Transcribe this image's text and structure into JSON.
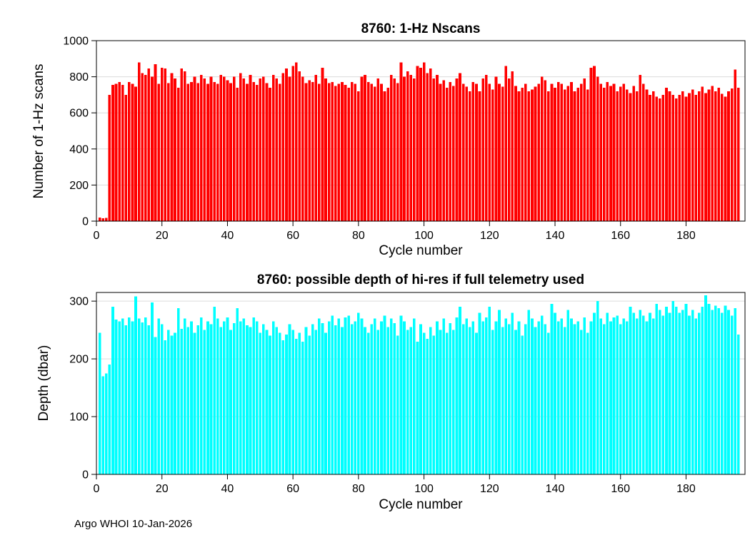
{
  "figure": {
    "footer": "Argo WHOI 10-Jan-2026",
    "background": "#ffffff"
  },
  "chart_data": [
    {
      "type": "bar",
      "title": "8760: 1-Hz Nscans",
      "xlabel": "Cycle number",
      "ylabel": "Number of 1-Hz scans",
      "bar_color": "#ff0000",
      "ylim": [
        0,
        1000
      ],
      "yticks": [
        0,
        200,
        400,
        600,
        800,
        1000
      ],
      "xticks": [
        0,
        20,
        40,
        60,
        80,
        100,
        120,
        140,
        160,
        180
      ],
      "xlim": [
        0,
        198
      ],
      "x_start": 1,
      "grid": "horizontal-only",
      "legend": "none",
      "values": [
        20,
        15,
        18,
        700,
        755,
        760,
        770,
        755,
        700,
        770,
        760,
        745,
        880,
        820,
        810,
        845,
        800,
        870,
        760,
        850,
        845,
        765,
        820,
        790,
        740,
        845,
        830,
        760,
        770,
        800,
        765,
        810,
        790,
        760,
        800,
        770,
        760,
        810,
        800,
        780,
        765,
        800,
        740,
        820,
        790,
        760,
        810,
        770,
        755,
        790,
        800,
        765,
        740,
        810,
        790,
        760,
        820,
        845,
        800,
        860,
        880,
        830,
        800,
        765,
        780,
        770,
        810,
        760,
        850,
        790,
        765,
        770,
        750,
        760,
        770,
        755,
        740,
        770,
        760,
        720,
        800,
        810,
        770,
        760,
        745,
        790,
        760,
        720,
        740,
        810,
        790,
        765,
        880,
        800,
        830,
        810,
        790,
        860,
        850,
        880,
        820,
        845,
        790,
        810,
        760,
        780,
        740,
        770,
        750,
        790,
        820,
        760,
        745,
        720,
        770,
        760,
        720,
        790,
        810,
        760,
        730,
        800,
        760,
        745,
        860,
        790,
        830,
        750,
        720,
        740,
        760,
        720,
        730,
        745,
        760,
        800,
        780,
        720,
        760,
        740,
        770,
        760,
        730,
        750,
        770,
        720,
        740,
        760,
        790,
        730,
        850,
        860,
        800,
        760,
        740,
        770,
        750,
        760,
        720,
        745,
        760,
        730,
        710,
        750,
        720,
        810,
        760,
        730,
        700,
        720,
        690,
        680,
        700,
        740,
        720,
        700,
        680,
        700,
        720,
        690,
        710,
        730,
        700,
        720,
        745,
        710,
        730,
        750,
        720,
        740,
        705,
        690,
        720,
        735,
        840,
        740
      ]
    },
    {
      "type": "bar",
      "title": "8760: possible depth of hi-res if full telemetry used",
      "xlabel": "Cycle number",
      "ylabel": "Depth (dbar)",
      "bar_color": "#00ffff",
      "ylim": [
        0,
        315
      ],
      "yticks": [
        0,
        100,
        200,
        300
      ],
      "xticks": [
        0,
        20,
        40,
        60,
        80,
        100,
        120,
        140,
        160,
        180
      ],
      "xlim": [
        0,
        198
      ],
      "x_start": 1,
      "grid": "horizontal-only",
      "legend": "none",
      "values": [
        245,
        170,
        175,
        190,
        290,
        268,
        265,
        270,
        258,
        272,
        265,
        308,
        270,
        263,
        272,
        258,
        298,
        238,
        270,
        260,
        232,
        250,
        240,
        245,
        288,
        252,
        270,
        255,
        265,
        245,
        258,
        272,
        250,
        265,
        260,
        290,
        270,
        255,
        265,
        272,
        250,
        262,
        288,
        265,
        270,
        258,
        255,
        272,
        265,
        245,
        260,
        250,
        240,
        265,
        255,
        245,
        232,
        242,
        260,
        250,
        235,
        245,
        230,
        255,
        240,
        260,
        250,
        270,
        262,
        245,
        265,
        275,
        258,
        270,
        255,
        272,
        275,
        260,
        265,
        280,
        270,
        255,
        245,
        260,
        270,
        250,
        265,
        275,
        255,
        270,
        262,
        240,
        275,
        265,
        250,
        255,
        270,
        230,
        260,
        245,
        235,
        255,
        240,
        265,
        250,
        270,
        245,
        262,
        250,
        272,
        290,
        260,
        270,
        255,
        265,
        245,
        280,
        265,
        272,
        290,
        250,
        265,
        285,
        255,
        270,
        260,
        280,
        250,
        265,
        240,
        260,
        285,
        270,
        255,
        265,
        275,
        260,
        245,
        295,
        280,
        265,
        270,
        255,
        285,
        270,
        260,
        265,
        250,
        272,
        245,
        265,
        280,
        300,
        270,
        260,
        280,
        265,
        272,
        275,
        260,
        270,
        265,
        290,
        280,
        270,
        285,
        275,
        265,
        280,
        270,
        295,
        285,
        275,
        290,
        280,
        300,
        290,
        280,
        285,
        295,
        275,
        285,
        270,
        280,
        290,
        310,
        295,
        285,
        292,
        288,
        280,
        292,
        285,
        275,
        288,
        242
      ]
    }
  ]
}
